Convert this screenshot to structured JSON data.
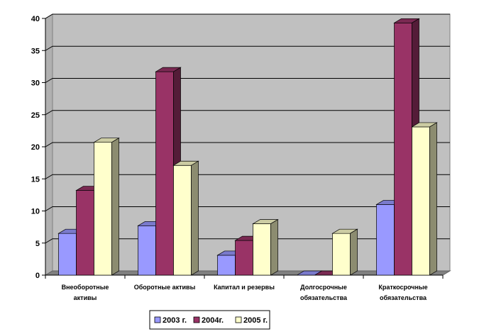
{
  "chart_data": {
    "type": "bar",
    "title": "",
    "xlabel": "",
    "ylabel": "",
    "ylim": [
      0,
      40
    ],
    "yticks": [
      0,
      5,
      10,
      15,
      20,
      25,
      30,
      35,
      40
    ],
    "grid": true,
    "legend_position": "bottom",
    "categories": [
      [
        "Внеоборотные",
        "активы"
      ],
      [
        "Оборотные активы"
      ],
      [
        "Капитал и резервы"
      ],
      [
        "Долгосрочные",
        "обязательства"
      ],
      [
        "Краткосрочные",
        "обязательства"
      ]
    ],
    "series": [
      {
        "name": "2003 г.",
        "color": "#9999FF",
        "values": [
          6.5,
          7.7,
          3.1,
          0,
          11
        ]
      },
      {
        "name": "2004г.",
        "color": "#993366",
        "values": [
          13.2,
          31.7,
          5.4,
          0,
          39.3
        ]
      },
      {
        "name": "2005 г.",
        "color": "#FFFFCC",
        "values": [
          20.7,
          17.1,
          8,
          6.5,
          23.1
        ]
      }
    ]
  }
}
